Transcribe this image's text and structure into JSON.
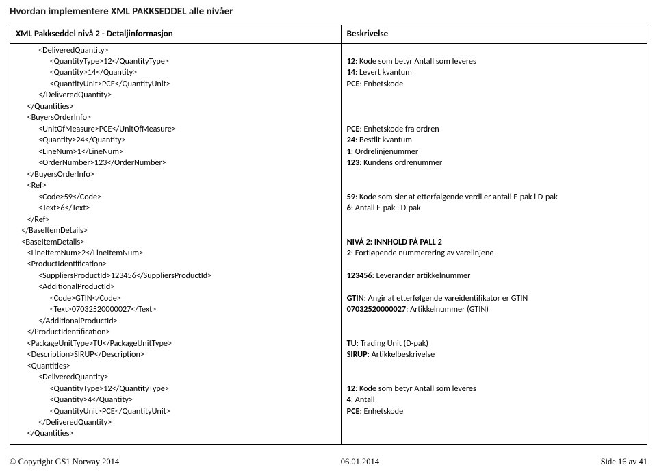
{
  "header": "Hvordan implementere XML PAKKSEDDEL alle nivåer",
  "table": {
    "head_left": "XML Pakkseddel nivå 2 - Detaljinformasjon",
    "head_right": "Beskrivelse"
  },
  "xml": {
    "l01": "            <DeliveredQuantity>",
    "l02": "                  <QuantityType>12</QuantityType>",
    "l03": "                  <Quantity>14</Quantity>",
    "l04": "                  <QuantityUnit>PCE</QuantityUnit>",
    "l05": "            </DeliveredQuantity>",
    "l06": "      </Quantities>",
    "l07": "      <BuyersOrderInfo>",
    "l08": "            <UnitOfMeasure>PCE</UnitOfMeasure>",
    "l09": "            <Quantity>24</Quantity>",
    "l10": "            <LineNum>1</LineNum>",
    "l11": "            <OrderNumber>123</OrderNumber>",
    "l12": "      </BuyersOrderInfo>",
    "l13": "      <Ref>",
    "l14": "            <Code>59</Code>",
    "l15": "            <Text>6</Text>",
    "l16": "      </Ref>",
    "l17": "   </BaseItemDetails>",
    "l18": "   <BaseItemDetails>",
    "l19": "      <LineItemNum>2</LineItemNum>",
    "l20": "      <ProductIdentification>",
    "l21": "            <SuppliersProductId>123456</SuppliersProductId>",
    "l22": "            <AdditionalProductId>",
    "l23": "                  <Code>GTIN</Code>",
    "l24": "                  <Text>07032520000027</Text>",
    "l25": "            </AdditionalProductId>",
    "l26": "      </ProductIdentification>",
    "l27": "      <PackageUnitType>TU</PackageUnitType>",
    "l28": "      <Description>SIRUP</Description>",
    "l29": "      <Quantities>",
    "l30": "            <DeliveredQuantity>",
    "l31": "                  <QuantityType>12</QuantityType>",
    "l32": "                  <Quantity>4</Quantity>",
    "l33": "                  <QuantityUnit>PCE</QuantityUnit>",
    "l34": "            </DeliveredQuantity>",
    "l35": "      </Quantities>"
  },
  "desc": {
    "d02b": "12",
    "d02t": ": Kode som betyr Antall som leveres",
    "d03b": "14",
    "d03t": ": Levert kvantum",
    "d04b": "PCE",
    "d04t": ": Enhetskode",
    "d08b": "PCE",
    "d08t": ": Enhetskode fra ordren",
    "d09b": "24",
    "d09t": ": Bestilt kvantum",
    "d10b": "1",
    "d10t": ": Ordrelinjenummer",
    "d11b": "123",
    "d11t": ": Kundens ordrenummer",
    "d14b": "59",
    "d14t": ": Kode som sier at etterfølgende verdi er antall F-pak i D-pak",
    "d15b": "6",
    "d15t": ": Antall F-pak i D-pak",
    "d18t": "NIVÅ 2: INNHOLD PÅ PALL 2",
    "d19b": "2",
    "d19t": ": Fortløpende nummerering av varelinjene",
    "d21b": "123456",
    "d21t": ": Leverandør artikkelnummer",
    "d23b": "GTIN",
    "d23t": ": Angir at etterfølgende vareidentifikator er GTIN",
    "d24b": "07032520000027",
    "d24t": ": Artikkelnummer (GTIN)",
    "d27b": "TU",
    "d27t": ": Trading Unit (D-pak)",
    "d28b": "SIRUP",
    "d28t": ": Artikkelbeskrivelse",
    "d31b": "12",
    "d31t": ": Kode som betyr Antall som leveres",
    "d32b": "4",
    "d32t": ": Antall",
    "d33b": "PCE",
    "d33t": ": Enhetskode"
  },
  "footer": {
    "left": "© Copyright GS1 Norway 2014",
    "center": "06.01.2014",
    "right": "Side 16 av 41"
  }
}
